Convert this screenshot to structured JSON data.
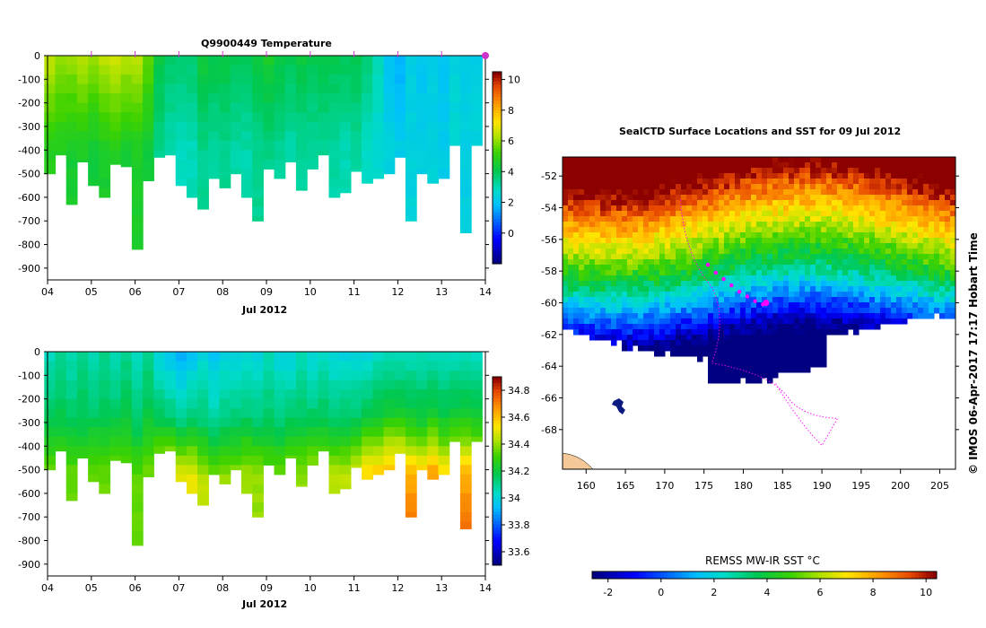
{
  "chart_data": [
    {
      "type": "heatmap",
      "title": "Q9900449  Temperature",
      "xlabel": "Jul 2012",
      "ylabel": "",
      "x_ticks": [
        "04",
        "05",
        "06",
        "07",
        "08",
        "09",
        "10",
        "11",
        "12",
        "13",
        "14"
      ],
      "y_ticks": [
        0,
        -100,
        -200,
        -300,
        -400,
        -500,
        -600,
        -700,
        -800,
        -900
      ],
      "xlim": [
        4,
        14
      ],
      "ylim": [
        -950,
        0
      ],
      "colorbar_ticks": [
        10,
        8,
        6,
        4,
        2,
        0
      ],
      "colorbar_range": [
        -2,
        10.5
      ],
      "profile_days": [
        4.05,
        4.3,
        4.55,
        4.8,
        5.05,
        5.3,
        5.55,
        5.8,
        6.05,
        6.3,
        6.55,
        6.8,
        7.05,
        7.3,
        7.55,
        7.8,
        8.05,
        8.3,
        8.55,
        8.8,
        9.05,
        9.3,
        9.55,
        9.8,
        10.05,
        10.3,
        10.55,
        10.8,
        11.05,
        11.3,
        11.55,
        11.8,
        12.05,
        12.3,
        12.55,
        12.8,
        13.05,
        13.3,
        13.55,
        13.8
      ],
      "profile_depths": [
        500,
        420,
        630,
        450,
        550,
        600,
        460,
        470,
        820,
        530,
        430,
        420,
        550,
        600,
        650,
        520,
        560,
        500,
        600,
        700,
        480,
        520,
        450,
        570,
        480,
        420,
        600,
        580,
        490,
        540,
        520,
        500,
        430,
        700,
        500,
        540,
        520,
        380,
        750,
        380
      ],
      "profile_temps_surface": [
        6.5,
        6.0,
        6.0,
        6.3,
        6.0,
        6.4,
        6.6,
        6.3,
        6.5,
        5.5,
        4.2,
        3.7,
        3.6,
        3.7,
        4.3,
        4.1,
        4.2,
        4.0,
        3.8,
        4.3,
        4.5,
        4.2,
        4.0,
        4.2,
        4.0,
        4.2,
        4.0,
        3.9,
        4.0,
        3.6,
        3.0,
        1.9,
        1.6,
        2.3,
        2.0,
        2.2,
        2.0,
        2.4,
        2.2,
        2.3
      ],
      "profile_temps_bottom": [
        4.8,
        4.6,
        4.5,
        4.6,
        4.4,
        4.5,
        4.6,
        4.4,
        4.6,
        4.3,
        3.4,
        3.0,
        2.8,
        2.9,
        3.3,
        3.2,
        3.3,
        3.1,
        3.0,
        3.3,
        3.4,
        3.2,
        3.1,
        3.2,
        3.1,
        3.3,
        3.1,
        3.0,
        3.1,
        2.8,
        2.6,
        2.4,
        2.2,
        2.4,
        2.3,
        2.4,
        2.2,
        2.5,
        2.3,
        2.4
      ]
    },
    {
      "type": "heatmap",
      "title": "",
      "xlabel": "Jul 2012",
      "ylabel": "",
      "x_ticks": [
        "04",
        "05",
        "06",
        "07",
        "08",
        "09",
        "10",
        "11",
        "12",
        "13",
        "14"
      ],
      "y_ticks": [
        0,
        -100,
        -200,
        -300,
        -400,
        -500,
        -600,
        -700,
        -800,
        -900
      ],
      "xlim": [
        4,
        14
      ],
      "ylim": [
        -950,
        0
      ],
      "colorbar_ticks": [
        34.8,
        34.6,
        34.4,
        34.2,
        34,
        33.8,
        33.6
      ],
      "colorbar_range": [
        33.5,
        34.9
      ],
      "profile_sal_surface": [
        34.05,
        34.1,
        34.05,
        34.1,
        34.05,
        34.1,
        34.05,
        34.1,
        34.05,
        34.1,
        34.0,
        33.95,
        33.9,
        33.95,
        34.0,
        33.95,
        34.0,
        34.0,
        34.0,
        34.0,
        34.05,
        34.0,
        34.0,
        34.05,
        34.0,
        34.05,
        34.0,
        34.0,
        34.0,
        34.0,
        34.05,
        34.05,
        34.05,
        34.05,
        34.05,
        34.05,
        34.05,
        34.05,
        34.05,
        34.05
      ],
      "profile_sal_bottom": [
        34.35,
        34.35,
        34.35,
        34.35,
        34.35,
        34.35,
        34.35,
        34.35,
        34.35,
        34.35,
        34.5,
        34.5,
        34.5,
        34.5,
        34.45,
        34.4,
        34.4,
        34.4,
        34.4,
        34.4,
        34.4,
        34.4,
        34.4,
        34.4,
        34.4,
        34.4,
        34.45,
        34.45,
        34.5,
        34.55,
        34.6,
        34.6,
        34.6,
        34.6,
        34.6,
        34.6,
        34.55,
        34.5,
        34.6,
        34.5
      ]
    },
    {
      "type": "heatmap",
      "title": "SealCTD Surface Locations and SST for 09 Jul 2012",
      "xlabel": "",
      "ylabel": "",
      "x_ticks": [
        "160",
        "165",
        "170",
        "175",
        "180",
        "185",
        "190",
        "195",
        "200",
        "205"
      ],
      "y_ticks": [
        "-52",
        "-54",
        "-56",
        "-58",
        "-60",
        "-62",
        "-64",
        "-66",
        "-68"
      ],
      "xlim": [
        157,
        207
      ],
      "ylim": [
        -70.5,
        -50.8
      ],
      "colorbar_label": "REMSS MW-IR SST °C",
      "colorbar_ticks": [
        "-2",
        "0",
        "2",
        "4",
        "6",
        "8",
        "10"
      ],
      "colorbar_range": [
        -2.6,
        10.4
      ],
      "track_points": [
        [
          175.5,
          -57.6
        ],
        [
          176.5,
          -58.1
        ],
        [
          177.5,
          -58.5
        ],
        [
          178.5,
          -58.9
        ],
        [
          179.5,
          -59.3
        ],
        [
          180.5,
          -59.6
        ],
        [
          181.5,
          -59.9
        ],
        [
          182.5,
          -60.1
        ]
      ],
      "current_point": [
        182.9,
        -60.0
      ]
    }
  ],
  "credit": "©  IMOS 06-Apr-2017 17:17 Hobart Time"
}
